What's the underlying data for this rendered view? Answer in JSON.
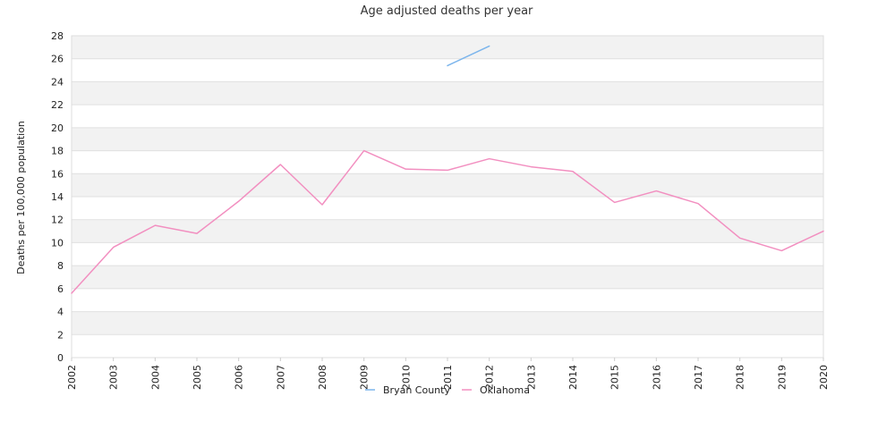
{
  "chart_data": {
    "type": "line",
    "title": "Age adjusted deaths per year",
    "xlabel": "",
    "ylabel": "Deaths per 100,000 population",
    "x": [
      "2002",
      "2003",
      "2004",
      "2005",
      "2006",
      "2007",
      "2008",
      "2009",
      "2010",
      "2011",
      "2012",
      "2013",
      "2014",
      "2015",
      "2016",
      "2017",
      "2018",
      "2019",
      "2020"
    ],
    "ylim": [
      0,
      28
    ],
    "yticks": [
      0,
      2,
      4,
      6,
      8,
      10,
      12,
      14,
      16,
      18,
      20,
      22,
      24,
      26,
      28
    ],
    "grid": "alternating horizontal bands",
    "legend_position": "bottom",
    "series": [
      {
        "name": "Bryan County",
        "color": "#7cb5ec",
        "values": [
          null,
          null,
          null,
          null,
          null,
          null,
          null,
          null,
          null,
          25.4,
          27.1,
          null,
          null,
          null,
          null,
          null,
          null,
          null,
          null
        ]
      },
      {
        "name": "Oklahoma",
        "color": "#f28fc0",
        "values": [
          5.6,
          9.6,
          11.5,
          10.8,
          13.6,
          16.8,
          13.3,
          18.0,
          16.4,
          16.3,
          17.3,
          16.6,
          16.2,
          13.5,
          14.5,
          13.4,
          10.4,
          9.3,
          11.0
        ]
      }
    ]
  }
}
